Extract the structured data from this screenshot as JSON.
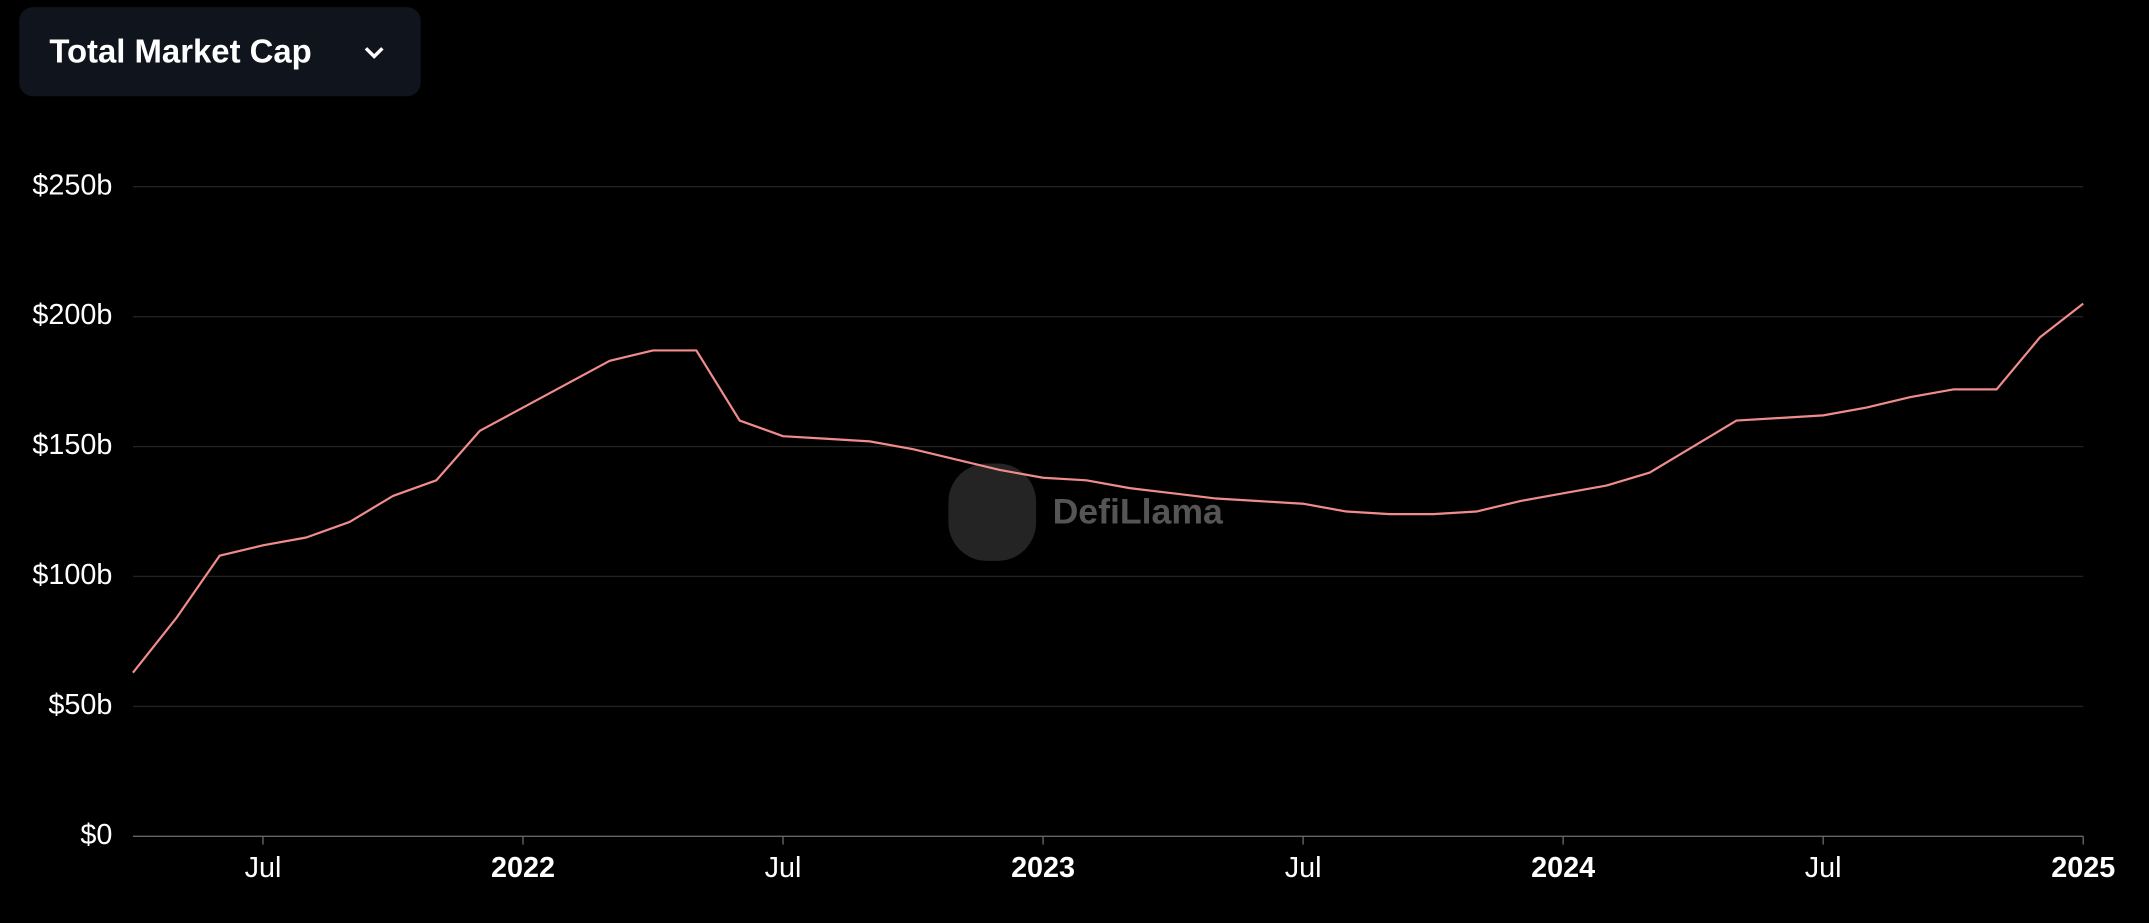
{
  "chart_data": {
    "type": "line",
    "title": "Total Market Cap",
    "watermark": "DefiLlama",
    "x": [
      "2021-04",
      "2021-05",
      "2021-06",
      "2021-07",
      "2021-08",
      "2021-09",
      "2021-10",
      "2021-11",
      "2021-12",
      "2022-01",
      "2022-02",
      "2022-03",
      "2022-04",
      "2022-05",
      "2022-06",
      "2022-07",
      "2022-08",
      "2022-09",
      "2022-10",
      "2022-11",
      "2022-12",
      "2023-01",
      "2023-02",
      "2023-03",
      "2023-04",
      "2023-05",
      "2023-06",
      "2023-07",
      "2023-08",
      "2023-09",
      "2023-10",
      "2023-11",
      "2023-12",
      "2024-01",
      "2024-02",
      "2024-03",
      "2024-04",
      "2024-05",
      "2024-06",
      "2024-07",
      "2024-08",
      "2024-09",
      "2024-10",
      "2024-11",
      "2024-12",
      "2025-01"
    ],
    "series": [
      {
        "name": "Total Market Cap",
        "color": "#f08c8c",
        "values": [
          63,
          84,
          108,
          112,
          115,
          121,
          131,
          137,
          156,
          165,
          174,
          183,
          187,
          187,
          160,
          154,
          153,
          152,
          149,
          145,
          141,
          138,
          137,
          134,
          132,
          130,
          129,
          128,
          125,
          124,
          124,
          125,
          129,
          132,
          135,
          140,
          150,
          160,
          161,
          162,
          165,
          169,
          172,
          172,
          192,
          205
        ]
      }
    ],
    "xlim": [
      "2021-04",
      "2025-01"
    ],
    "xticks": [
      {
        "value": "2021-07",
        "label": "Jul"
      },
      {
        "value": "2022-01",
        "label": "2022"
      },
      {
        "value": "2022-07",
        "label": "Jul"
      },
      {
        "value": "2023-01",
        "label": "2023"
      },
      {
        "value": "2023-07",
        "label": "Jul"
      },
      {
        "value": "2024-01",
        "label": "2024"
      },
      {
        "value": "2024-07",
        "label": "Jul"
      },
      {
        "value": "2025-01",
        "label": "2025"
      }
    ],
    "ylim": [
      0,
      250
    ],
    "yticks": [
      {
        "value": 0,
        "label": "$0"
      },
      {
        "value": 50,
        "label": "$50b"
      },
      {
        "value": 100,
        "label": "$100b"
      },
      {
        "value": 150,
        "label": "$150b"
      },
      {
        "value": 200,
        "label": "$200b"
      },
      {
        "value": 250,
        "label": "$250b"
      }
    ],
    "grid": true
  }
}
